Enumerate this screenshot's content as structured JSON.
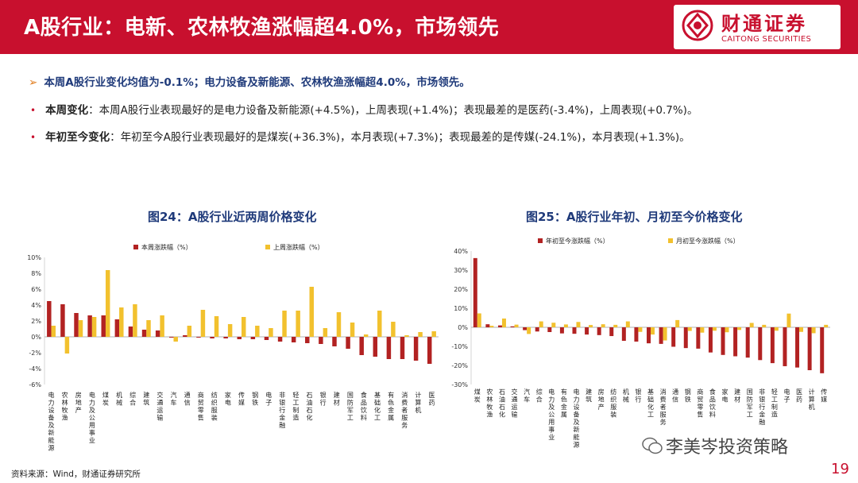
{
  "header": {
    "title": "A股行业：电新、农林牧渔涨幅超4.0%，市场领先",
    "logo_cn": "财通证券",
    "logo_en": "CAITONG SECURITIES"
  },
  "bullets": {
    "summary": "本周A股行业变化均值为-0.1%；电力设备及新能源、农林牧渔涨幅超4.0%，市场领先。",
    "weekly_label": "本周变化",
    "weekly_text": "：本周A股行业表现最好的是电力设备及新能源(+4.5%)，上周表现(+1.4%)；表现最差的是医药(-3.4%)，上周表现(+0.7%)。",
    "ytd_label": "年初至今变化",
    "ytd_text": "：年初至今A股行业表现最好的是煤炭(+36.3%)，本月表现(+7.3%)；表现最差的是传媒(-24.1%)，本月表现(+1.3%)。"
  },
  "footer": {
    "source": "资料来源：Wind，财通证券研究所",
    "page": "19",
    "watermark": "李美岑投资策略"
  },
  "colors": {
    "accent": "#c8102e",
    "series_red": "#b22222",
    "series_gold": "#f2c12e",
    "title_blue": "#1f3a7a"
  },
  "chart_data": [
    {
      "type": "bar",
      "title": "图24：A股行业近两周价格变化",
      "categories": [
        "电力设备及新能源",
        "农林牧渔",
        "房地产",
        "电力及公用事业",
        "煤炭",
        "机械",
        "综合",
        "建筑",
        "交通运输",
        "汽车",
        "通信",
        "商贸零售",
        "纺织服装",
        "家电",
        "传媒",
        "钢铁",
        "电子",
        "非银行金融",
        "轻工制造",
        "石油石化",
        "银行",
        "建材",
        "国防军工",
        "食品饮料",
        "基础化工",
        "有色金属",
        "消费者服务",
        "计算机",
        "医药"
      ],
      "series": [
        {
          "name": "本周涨跌幅（%）",
          "values": [
            4.5,
            4.1,
            3.0,
            2.7,
            2.7,
            2.2,
            1.3,
            0.9,
            0.8,
            -0.1,
            0.2,
            -0.1,
            -0.2,
            -0.2,
            -0.3,
            -0.3,
            -0.4,
            -0.6,
            -0.7,
            -0.8,
            -0.9,
            -1.2,
            -1.5,
            -2.3,
            -2.5,
            -2.8,
            -2.8,
            -3.0,
            -3.4
          ]
        },
        {
          "name": "上周涨跌幅（%）",
          "values": [
            1.4,
            -2.1,
            2.1,
            2.5,
            8.4,
            3.7,
            4.1,
            2.1,
            2.7,
            -0.6,
            1.4,
            3.4,
            2.6,
            1.6,
            2.5,
            1.4,
            1.1,
            3.3,
            3.3,
            6.3,
            1.1,
            3.1,
            1.8,
            0.3,
            3.3,
            1.9,
            0.2,
            0.6,
            0.7
          ]
        }
      ],
      "ylim": [
        -6,
        10
      ],
      "yticks": [
        "-6%",
        "-4%",
        "-2%",
        "0%",
        "2%",
        "4%",
        "6%",
        "8%",
        "10%"
      ],
      "legend": "top"
    },
    {
      "type": "bar",
      "title": "图25：A股行业年初、月初至今价格变化",
      "categories": [
        "煤炭",
        "农林牧渔",
        "石油石化",
        "交通运输",
        "汽车",
        "综合",
        "电力及公用事业",
        "有色金属",
        "电力设备及新能源",
        "建筑",
        "房地产",
        "纺织服装",
        "机械",
        "银行",
        "基础化工",
        "消费者服务",
        "通信",
        "钢铁",
        "商贸零售",
        "食品饮料",
        "家电",
        "建材",
        "国防军工",
        "非银行金融",
        "轻工制造",
        "电子",
        "医药",
        "计算机",
        "传媒"
      ],
      "series": [
        {
          "name": "年初至今涨跌幅（%）",
          "values": [
            36.3,
            1.6,
            1.0,
            0.5,
            -1.5,
            -2.2,
            -2.5,
            -3.2,
            -3.4,
            -3.8,
            -4.1,
            -4.6,
            -7.1,
            -7.5,
            -8.4,
            -8.7,
            -10.2,
            -10.9,
            -11.2,
            -13.2,
            -14.5,
            -15.2,
            -15.9,
            -17.2,
            -18.8,
            -20.4,
            -21.1,
            -22.5,
            -24.1
          ]
        },
        {
          "name": "月初至今涨跌幅（%）",
          "values": [
            7.3,
            0.8,
            4.6,
            1.4,
            -3.5,
            3.1,
            2.4,
            1.5,
            2.8,
            1.2,
            1.6,
            1.3,
            3.1,
            -2.4,
            -3.8,
            -6.9,
            3.8,
            -1.9,
            -2.8,
            -1.8,
            -2.6,
            -1.4,
            2.3,
            1.3,
            -1.8,
            7.2,
            -2.4,
            -3.1,
            1.3
          ]
        }
      ],
      "ylim": [
        -30,
        40
      ],
      "yticks": [
        "-30%",
        "-20%",
        "-10%",
        "0%",
        "10%",
        "20%",
        "30%",
        "40%"
      ],
      "legend": "top"
    }
  ]
}
